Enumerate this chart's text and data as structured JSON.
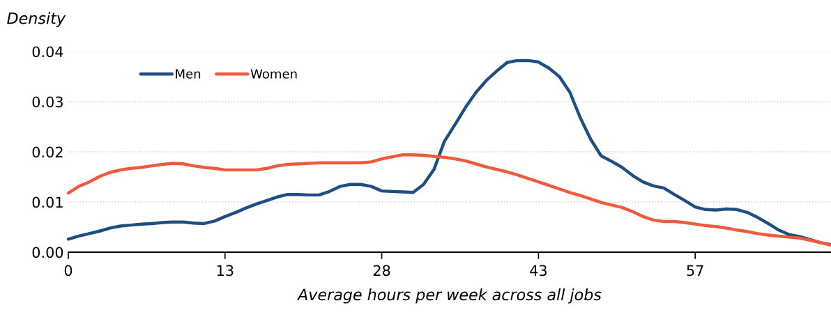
{
  "chart_data": {
    "type": "line",
    "xlabel": "Average hours per week across all jobs",
    "ylabel": "Density",
    "categories": [
      "0",
      null,
      null,
      null,
      null,
      null,
      null,
      null,
      null,
      null,
      null,
      null,
      null,
      null,
      null,
      "13",
      null,
      null,
      null,
      null,
      null,
      null,
      null,
      null,
      null,
      null,
      null,
      null,
      null,
      null,
      "28",
      null,
      null,
      null,
      null,
      null,
      null,
      null,
      null,
      null,
      null,
      null,
      null,
      null,
      null,
      "43",
      null,
      null,
      null,
      null,
      null,
      null,
      null,
      null,
      null,
      null,
      null,
      null,
      null,
      null,
      "57",
      null,
      null,
      null,
      null,
      null,
      null,
      null,
      null,
      null,
      null,
      null,
      null,
      null
    ],
    "series": [
      {
        "name": "Men",
        "color": "#1f4e83",
        "values": [
          0.0026,
          0.0032,
          0.0037,
          0.0042,
          0.0048,
          0.0052,
          0.0054,
          0.0056,
          0.0057,
          0.0059,
          0.006,
          0.006,
          0.0058,
          0.0057,
          0.0062,
          0.0071,
          0.0079,
          0.0088,
          0.0096,
          0.0103,
          0.011,
          0.0115,
          0.0115,
          0.0114,
          0.0114,
          0.0121,
          0.0131,
          0.0135,
          0.0135,
          0.0131,
          0.0122,
          0.0121,
          0.012,
          0.0119,
          0.0135,
          0.0165,
          0.0221,
          0.0254,
          0.0288,
          0.0318,
          0.0342,
          0.0361,
          0.0378,
          0.0382,
          0.0382,
          0.0379,
          0.0367,
          0.035,
          0.0319,
          0.0268,
          0.0225,
          0.0192,
          0.0181,
          0.0169,
          0.0153,
          0.014,
          0.0132,
          0.0128,
          0.0115,
          0.0103,
          0.009,
          0.0085,
          0.0084,
          0.0086,
          0.0085,
          0.0079,
          0.0069,
          0.0057,
          0.0044,
          0.0035,
          0.0031,
          0.0025,
          0.0019,
          0.0015
        ]
      },
      {
        "name": "Women",
        "color": "#f05a3c",
        "values": [
          0.0118,
          0.0131,
          0.014,
          0.0151,
          0.0159,
          0.0164,
          0.0167,
          0.0169,
          0.0172,
          0.0175,
          0.0177,
          0.0176,
          0.0172,
          0.0169,
          0.0167,
          0.0164,
          0.0164,
          0.0164,
          0.0164,
          0.0167,
          0.0172,
          0.0175,
          0.0176,
          0.0177,
          0.0178,
          0.0178,
          0.0178,
          0.0178,
          0.0178,
          0.018,
          0.0186,
          0.019,
          0.0194,
          0.0194,
          0.0193,
          0.0191,
          0.0189,
          0.0186,
          0.0182,
          0.0176,
          0.017,
          0.0165,
          0.016,
          0.0154,
          0.0147,
          0.014,
          0.0133,
          0.0126,
          0.0119,
          0.0113,
          0.0106,
          0.0099,
          0.0094,
          0.0089,
          0.0081,
          0.0071,
          0.0064,
          0.0061,
          0.0061,
          0.0059,
          0.0056,
          0.0053,
          0.0051,
          0.0048,
          0.0044,
          0.0041,
          0.0037,
          0.0034,
          0.0032,
          0.003,
          0.0028,
          0.0024,
          0.0019,
          0.0014
        ]
      }
    ],
    "ylim": [
      0,
      0.04
    ],
    "yticks": [
      {
        "value": 0,
        "label": "0.00"
      },
      {
        "value": 0.01,
        "label": "0.01"
      },
      {
        "value": 0.02,
        "label": "0.02"
      },
      {
        "value": 0.03,
        "label": "0.03"
      },
      {
        "value": 0.04,
        "label": "0.04"
      }
    ],
    "grid": "y",
    "legend": "top left",
    "marker": "none",
    "line_style": "solid"
  }
}
